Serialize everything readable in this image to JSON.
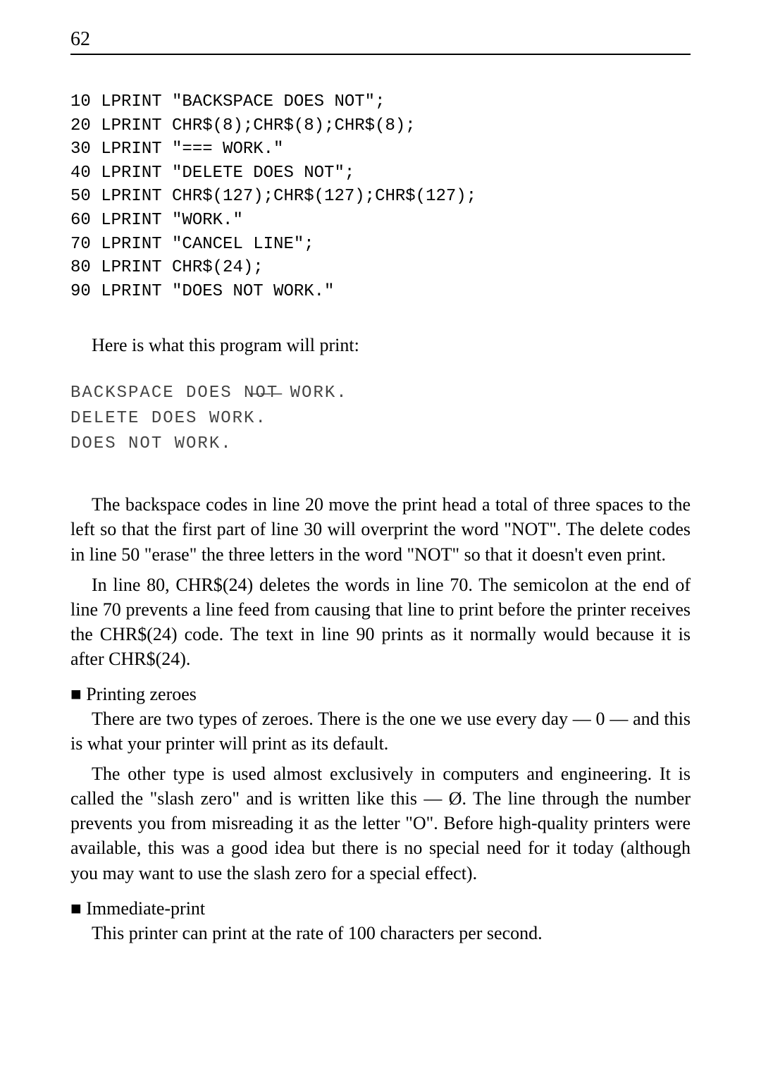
{
  "page": {
    "number": "62"
  },
  "code": {
    "lines": "10 LPRINT \"BACKSPACE DOES NOT\";\n20 LPRINT CHR$(8);CHR$(8);CHR$(8);\n30 LPRINT \"=== WORK.\"\n40 LPRINT \"DELETE DOES NOT\";\n50 LPRINT CHR$(127);CHR$(127);CHR$(127);\n60 LPRINT \"WORK.\"\n70 LPRINT \"CANCEL LINE\";\n80 LPRINT CHR$(24);\n90 LPRINT \"DOES NOT WORK.\""
  },
  "intro": {
    "text": "Here is what this program will print:"
  },
  "output": {
    "text": "BACKSPACE DOES N̶O̶T̶ WORK.\nDELETE DOES WORK.\nDOES NOT WORK."
  },
  "paragraphs": {
    "p1": "The backspace codes in line 20 move the print head a total of three spaces to the left so that the first part of line 30 will overprint the word \"NOT\". The delete codes in line 50 \"erase\" the three letters in the word \"NOT\" so that it doesn't even print.",
    "p2": "In line 80, CHR$(24) deletes the words in line 70. The semicolon at the end of line 70 prevents a line feed from causing that line to print before the printer receives the CHR$(24) code. The text in line 90 prints as it normally would because it is after CHR$(24)."
  },
  "sections": {
    "zeroes": {
      "heading": "Printing zeroes",
      "p1": "There are two types of zeroes. There is the one we use every day — 0 — and this is what your printer will print as its default.",
      "p2": "The other type is used almost exclusively in computers and engineering. It is called the \"slash zero\" and is written like this — Ø. The line through the number prevents you from misreading it as the letter \"O\". Before high-quality printers were available, this was a good idea but there is no special need for it today (although you may want to use the slash zero for a special effect)."
    },
    "immediate": {
      "heading": "Immediate-print",
      "p1": "This printer can print at the rate of 100 characters per second."
    }
  }
}
